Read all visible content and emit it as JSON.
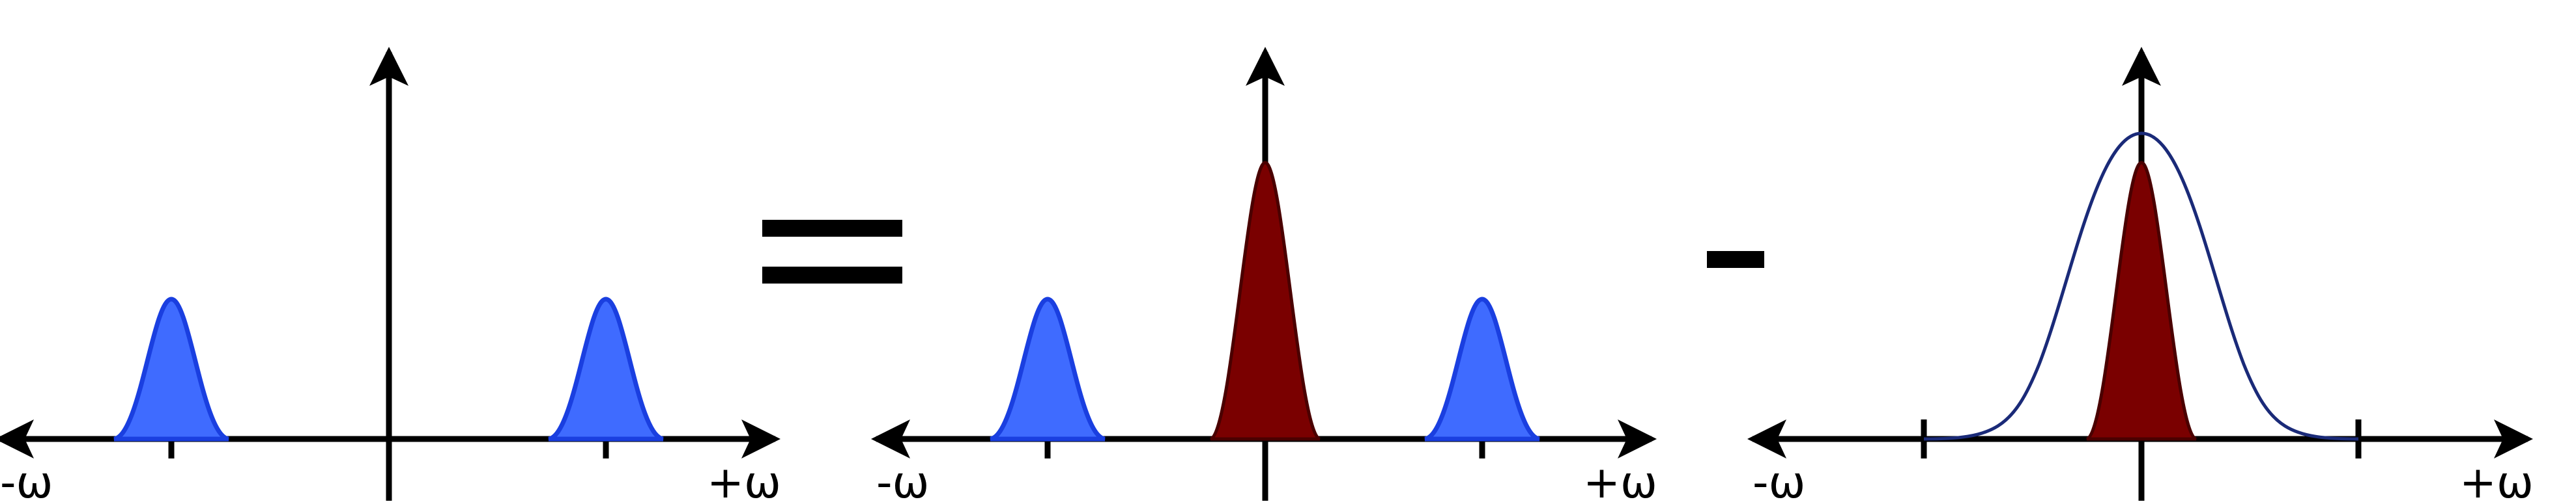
{
  "panels": [
    {
      "neg_label": "-ω",
      "pos_label": "+ω"
    },
    {
      "neg_label": "-ω",
      "pos_label": "+ω"
    },
    {
      "neg_label": "-ω",
      "pos_label": "+ω"
    }
  ],
  "operators": {
    "equals": "=",
    "minus": "-"
  },
  "colors": {
    "axis": "#000000",
    "sideband_fill": "#3f6bff",
    "sideband_stroke": "#1a3fe0",
    "baseband_fill": "#7a0000",
    "baseband_stroke": "#4a0000",
    "filter_curve": "#1a2a78"
  }
}
